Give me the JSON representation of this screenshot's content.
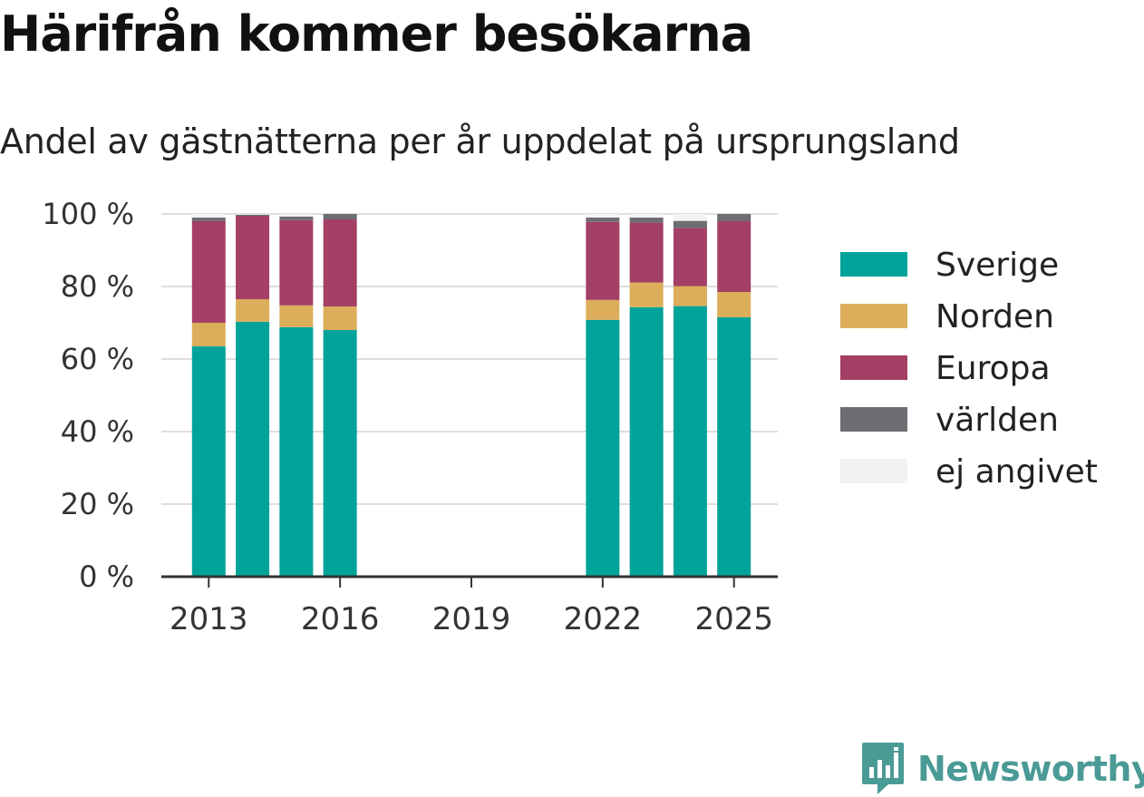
{
  "title": "Härifrån kommer besökarna",
  "subtitle": "Andel av gästnätterna per år uppdelat på ursprungsland",
  "brand": {
    "name": "Newsworthy",
    "logo_icon": "newsworthy-chart-icon"
  },
  "chart_data": {
    "type": "bar",
    "stacked": true,
    "x": [
      2013,
      2014,
      2015,
      2016,
      2022,
      2023,
      2024,
      2025
    ],
    "x_ticks": [
      "2013",
      "2016",
      "2019",
      "2022",
      "2025"
    ],
    "xlim": [
      2012,
      2026
    ],
    "ylim": [
      0,
      100
    ],
    "y_ticks": [
      "0 %",
      "20 %",
      "40 %",
      "60 %",
      "80 %",
      "100 %"
    ],
    "grid": true,
    "legend_position": "right",
    "series": [
      {
        "name": "Sverige",
        "color": "#00a39a",
        "values": [
          63.5,
          70.3,
          68.8,
          68.0,
          70.8,
          74.3,
          74.6,
          71.5
        ]
      },
      {
        "name": "Norden",
        "color": "#dcae5b",
        "values": [
          6.5,
          6.2,
          6.0,
          6.5,
          5.5,
          6.8,
          5.5,
          7.0
        ]
      },
      {
        "name": "Europa",
        "color": "#a43f65",
        "values": [
          28.0,
          23.0,
          23.5,
          24.0,
          21.5,
          16.5,
          16.0,
          19.5
        ]
      },
      {
        "name": "världen",
        "color": "#6d6d73",
        "values": [
          1.0,
          0.3,
          1.0,
          1.5,
          1.2,
          1.4,
          2.0,
          2.0
        ]
      },
      {
        "name": "ej angivet",
        "color": "#f2f2f2",
        "values": [
          1.0,
          0.2,
          0.7,
          0.0,
          1.0,
          1.0,
          1.9,
          0.0
        ]
      }
    ]
  }
}
